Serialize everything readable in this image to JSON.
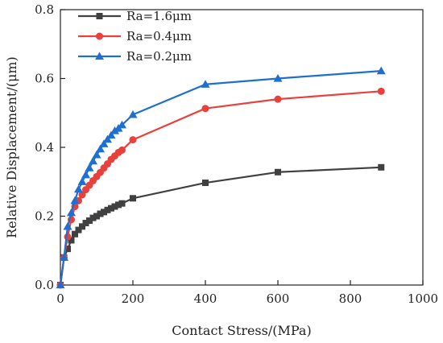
{
  "chart_data": {
    "type": "line",
    "title": "",
    "xlabel": "Contact Stress/(MPa)",
    "ylabel": "Relative Displacement/(μm)",
    "xlim": [
      0,
      1000
    ],
    "ylim": [
      0,
      0.8
    ],
    "xticks": [
      0,
      200,
      400,
      600,
      800,
      1000
    ],
    "yticks": [
      0.0,
      0.2,
      0.4,
      0.6,
      0.8
    ],
    "xtick_labels": [
      "0",
      "200",
      "400",
      "600",
      "800",
      "1000"
    ],
    "ytick_labels": [
      "0.0",
      "0.2",
      "0.4",
      "0.6",
      "0.8"
    ],
    "grid": false,
    "legend_position": "top-left",
    "series": [
      {
        "name": "Ra=1.6μm",
        "color": "#404040",
        "marker": "square",
        "x": [
          0,
          10,
          20,
          30,
          40,
          50,
          60,
          70,
          80,
          90,
          100,
          110,
          120,
          130,
          140,
          150,
          160,
          170,
          200,
          400,
          600,
          885
        ],
        "y": [
          0.0,
          0.08,
          0.105,
          0.13,
          0.148,
          0.16,
          0.17,
          0.18,
          0.187,
          0.195,
          0.2,
          0.207,
          0.212,
          0.218,
          0.223,
          0.228,
          0.233,
          0.237,
          0.252,
          0.297,
          0.328,
          0.342
        ]
      },
      {
        "name": "Ra=0.4μm",
        "color": "#e8413c",
        "marker": "circle",
        "x": [
          0,
          10,
          20,
          30,
          40,
          50,
          60,
          70,
          80,
          90,
          100,
          110,
          120,
          130,
          140,
          150,
          160,
          170,
          200,
          400,
          600,
          885
        ],
        "y": [
          0.0,
          0.08,
          0.14,
          0.19,
          0.228,
          0.245,
          0.262,
          0.277,
          0.29,
          0.303,
          0.315,
          0.327,
          0.34,
          0.352,
          0.365,
          0.375,
          0.385,
          0.392,
          0.422,
          0.513,
          0.54,
          0.563
        ]
      },
      {
        "name": "Ra=0.2μm",
        "color": "#1f6fd1",
        "marker": "triangle",
        "x": [
          0,
          10,
          20,
          30,
          40,
          50,
          60,
          70,
          80,
          90,
          100,
          110,
          120,
          130,
          140,
          150,
          160,
          170,
          200,
          400,
          600,
          885
        ],
        "y": [
          0.0,
          0.08,
          0.17,
          0.21,
          0.245,
          0.278,
          0.3,
          0.32,
          0.34,
          0.36,
          0.378,
          0.395,
          0.41,
          0.423,
          0.435,
          0.448,
          0.455,
          0.465,
          0.495,
          0.583,
          0.6,
          0.622
        ]
      }
    ]
  }
}
